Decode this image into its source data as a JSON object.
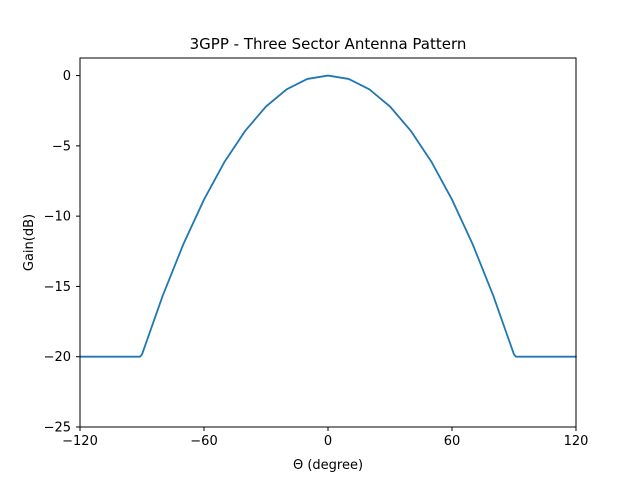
{
  "chart_data": {
    "type": "line",
    "title": "3GPP - Three Sector Antenna Pattern",
    "xlabel": "Θ (degree)",
    "ylabel": "Gain(dB)",
    "xlim": [
      -120,
      120
    ],
    "ylim": [
      -25,
      1.25
    ],
    "xticks": [
      -120,
      -60,
      0,
      60,
      120
    ],
    "xtick_labels": [
      "−120",
      "−60",
      "0",
      "60",
      "120"
    ],
    "yticks": [
      0,
      -5,
      -10,
      -15,
      -20,
      -25
    ],
    "ytick_labels": [
      "0",
      "−5",
      "−10",
      "−15",
      "−20",
      "−25"
    ],
    "grid": false,
    "series": [
      {
        "color": "#1f77b4",
        "x": [
          -120,
          -110,
          -100,
          -91,
          -90,
          -80,
          -70,
          -60,
          -50,
          -40,
          -30,
          -20,
          -10,
          0,
          10,
          20,
          30,
          40,
          50,
          60,
          70,
          80,
          90,
          91,
          100,
          110,
          120
        ],
        "y": [
          -20,
          -20,
          -20,
          -20,
          -19.84,
          -15.67,
          -12.0,
          -8.82,
          -6.12,
          -3.92,
          -2.2,
          -0.98,
          -0.24,
          0,
          -0.24,
          -0.98,
          -2.2,
          -3.92,
          -6.12,
          -8.82,
          -12.0,
          -15.67,
          -19.84,
          -20,
          -20,
          -20,
          -20
        ]
      }
    ]
  }
}
